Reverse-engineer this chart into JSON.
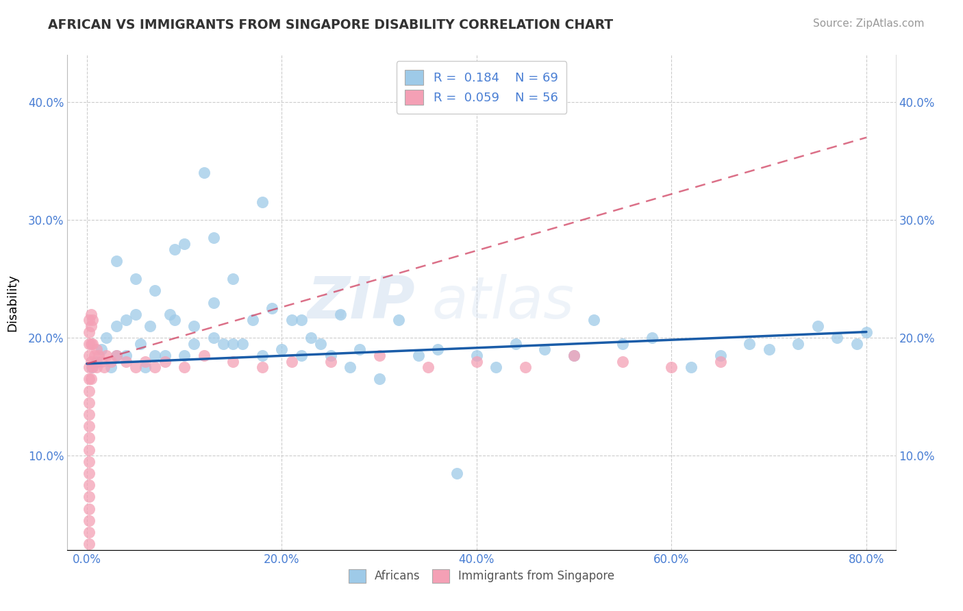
{
  "title": "AFRICAN VS IMMIGRANTS FROM SINGAPORE DISABILITY CORRELATION CHART",
  "source": "Source: ZipAtlas.com",
  "xlim": [
    -0.02,
    0.83
  ],
  "ylim": [
    0.02,
    0.44
  ],
  "xlabel_tick_vals": [
    0.0,
    0.2,
    0.4,
    0.6,
    0.8
  ],
  "ylabel_tick_vals": [
    0.1,
    0.2,
    0.3,
    0.4
  ],
  "watermark": "ZIPatlas",
  "legend_label1": "Africans",
  "legend_label2": "Immigrants from Singapore",
  "R1": 0.184,
  "N1": 69,
  "R2": 0.059,
  "N2": 56,
  "color1": "#9ecae8",
  "color2": "#f4a0b5",
  "line_color1": "#1a5ca8",
  "line_color2": "#d04060",
  "africans_x": [
    0.005,
    0.01,
    0.015,
    0.02,
    0.025,
    0.03,
    0.03,
    0.04,
    0.04,
    0.05,
    0.055,
    0.06,
    0.065,
    0.07,
    0.08,
    0.085,
    0.09,
    0.1,
    0.1,
    0.11,
    0.12,
    0.13,
    0.13,
    0.14,
    0.15,
    0.16,
    0.17,
    0.18,
    0.19,
    0.2,
    0.21,
    0.22,
    0.23,
    0.24,
    0.25,
    0.26,
    0.27,
    0.28,
    0.3,
    0.32,
    0.34,
    0.36,
    0.38,
    0.4,
    0.42,
    0.44,
    0.47,
    0.5,
    0.52,
    0.55,
    0.58,
    0.62,
    0.65,
    0.68,
    0.7,
    0.73,
    0.75,
    0.77,
    0.79,
    0.8,
    0.03,
    0.05,
    0.07,
    0.09,
    0.11,
    0.13,
    0.15,
    0.18,
    0.22
  ],
  "africans_y": [
    0.175,
    0.18,
    0.19,
    0.2,
    0.175,
    0.21,
    0.185,
    0.215,
    0.185,
    0.22,
    0.195,
    0.175,
    0.21,
    0.24,
    0.185,
    0.22,
    0.215,
    0.185,
    0.28,
    0.195,
    0.34,
    0.23,
    0.2,
    0.195,
    0.25,
    0.195,
    0.215,
    0.185,
    0.225,
    0.19,
    0.215,
    0.185,
    0.2,
    0.195,
    0.185,
    0.22,
    0.175,
    0.19,
    0.165,
    0.215,
    0.185,
    0.19,
    0.085,
    0.185,
    0.175,
    0.195,
    0.19,
    0.185,
    0.215,
    0.195,
    0.2,
    0.175,
    0.185,
    0.195,
    0.19,
    0.195,
    0.21,
    0.2,
    0.195,
    0.205,
    0.265,
    0.25,
    0.185,
    0.275,
    0.21,
    0.285,
    0.195,
    0.315,
    0.215
  ],
  "singapore_x": [
    0.002,
    0.002,
    0.002,
    0.002,
    0.002,
    0.002,
    0.002,
    0.002,
    0.002,
    0.002,
    0.002,
    0.002,
    0.002,
    0.002,
    0.002,
    0.002,
    0.002,
    0.002,
    0.002,
    0.002,
    0.004,
    0.004,
    0.004,
    0.004,
    0.004,
    0.006,
    0.006,
    0.006,
    0.008,
    0.01,
    0.01,
    0.012,
    0.015,
    0.018,
    0.02,
    0.025,
    0.03,
    0.04,
    0.05,
    0.06,
    0.07,
    0.08,
    0.1,
    0.12,
    0.15,
    0.18,
    0.21,
    0.25,
    0.3,
    0.35,
    0.4,
    0.45,
    0.5,
    0.55,
    0.6,
    0.65
  ],
  "singapore_y": [
    0.215,
    0.205,
    0.195,
    0.185,
    0.175,
    0.165,
    0.155,
    0.145,
    0.135,
    0.125,
    0.115,
    0.105,
    0.095,
    0.085,
    0.075,
    0.065,
    0.055,
    0.045,
    0.035,
    0.025,
    0.22,
    0.21,
    0.195,
    0.18,
    0.165,
    0.215,
    0.195,
    0.175,
    0.185,
    0.19,
    0.175,
    0.185,
    0.18,
    0.175,
    0.185,
    0.18,
    0.185,
    0.18,
    0.175,
    0.18,
    0.175,
    0.18,
    0.175,
    0.185,
    0.18,
    0.175,
    0.18,
    0.18,
    0.185,
    0.175,
    0.18,
    0.175,
    0.185,
    0.18,
    0.175,
    0.18
  ]
}
